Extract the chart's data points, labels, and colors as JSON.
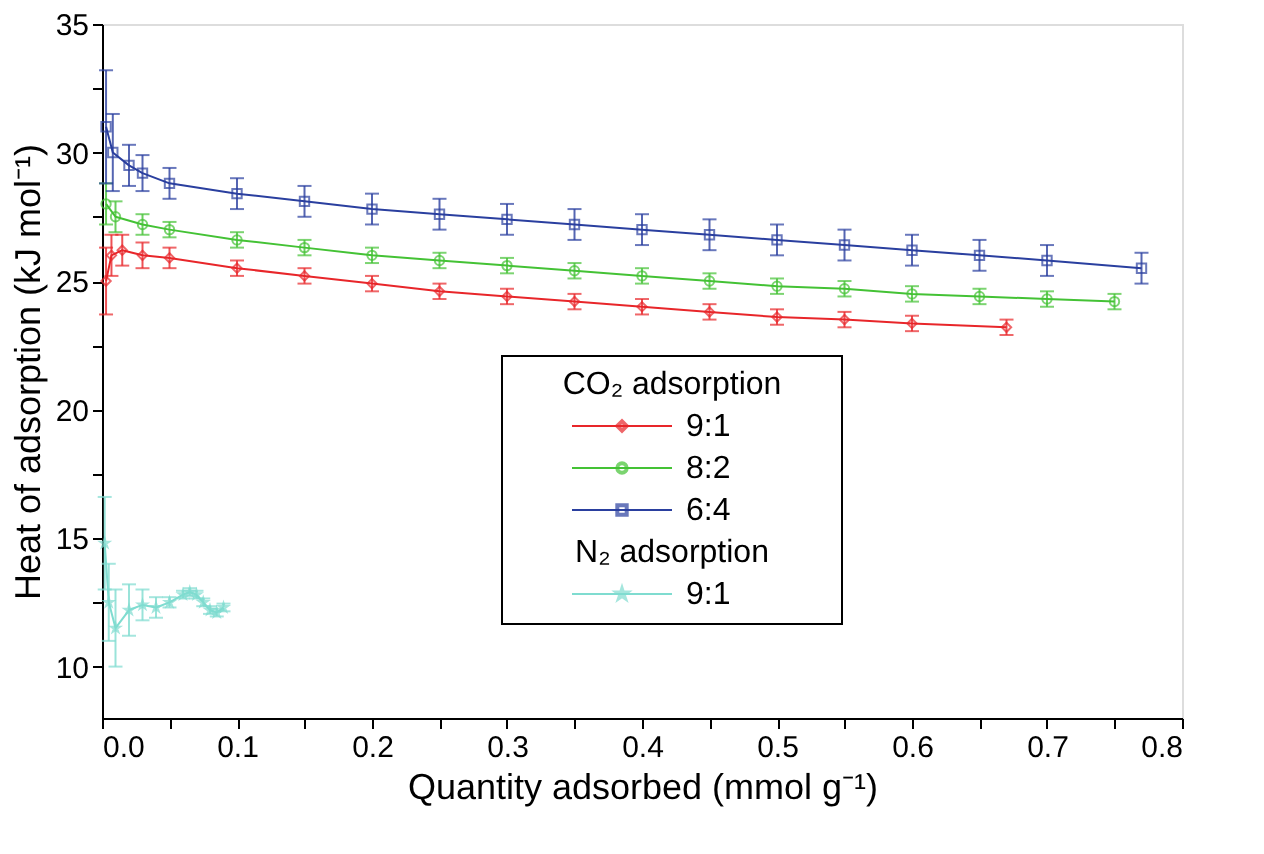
{
  "chart_data": {
    "type": "line",
    "xlabel": "Quantity adsorbed (mmol g⁻¹)",
    "ylabel": "Heat of adsorption (kJ mol⁻¹)",
    "xlim": [
      0,
      0.8
    ],
    "ylim": [
      8,
      35
    ],
    "xticks": [
      {
        "value": 0,
        "label": "0.0"
      },
      {
        "value": 0.05,
        "label": null
      },
      {
        "value": 0.1,
        "label": "0.1"
      },
      {
        "value": 0.15,
        "label": null
      },
      {
        "value": 0.2,
        "label": "0.2"
      },
      {
        "value": 0.25,
        "label": null
      },
      {
        "value": 0.3,
        "label": "0.3"
      },
      {
        "value": 0.35,
        "label": null
      },
      {
        "value": 0.4,
        "label": "0.4"
      },
      {
        "value": 0.45,
        "label": null
      },
      {
        "value": 0.5,
        "label": "0.5"
      },
      {
        "value": 0.55,
        "label": null
      },
      {
        "value": 0.6,
        "label": "0.6"
      },
      {
        "value": 0.65,
        "label": null
      },
      {
        "value": 0.7,
        "label": "0.7"
      },
      {
        "value": 0.75,
        "label": null
      },
      {
        "value": 0.8,
        "label": "0.8"
      }
    ],
    "yticks": [
      10,
      {
        "value": 12.5,
        "label": null
      },
      15,
      {
        "value": 17.5,
        "label": null
      },
      20,
      {
        "value": 22.5,
        "label": null
      },
      25,
      {
        "value": 27.5,
        "label": null
      },
      30,
      {
        "value": 32.5,
        "label": null
      },
      35
    ],
    "legend": "bottom",
    "legend_title": "CO₂ adsorption",
    "grid": false,
    "annotations": [
      "N₂ adsorption"
    ],
    "series": [
      {
        "name": "9:1",
        "color": "#e8262a",
        "marker": "diamond",
        "x": [
          0.003,
          0.007,
          0.015,
          0.03,
          0.05,
          0.1,
          0.15,
          0.2,
          0.25,
          0.3,
          0.35,
          0.4,
          0.45,
          0.5,
          0.55,
          0.6,
          0.67
        ],
        "values": [
          25.0,
          26.0,
          26.2,
          26.0,
          25.9,
          25.5,
          25.2,
          24.9,
          24.6,
          24.4,
          24.2,
          24.0,
          23.8,
          23.6,
          23.5,
          23.35,
          23.2
        ],
        "errors": [
          1.3,
          0.8,
          0.6,
          0.5,
          0.4,
          0.3,
          0.3,
          0.3,
          0.3,
          0.3,
          0.3,
          0.3,
          0.3,
          0.3,
          0.3,
          0.3,
          0.3
        ]
      },
      {
        "name": "8:2",
        "color": "#44c235",
        "marker": "circle",
        "x": [
          0.003,
          0.01,
          0.03,
          0.05,
          0.1,
          0.15,
          0.2,
          0.25,
          0.3,
          0.35,
          0.4,
          0.45,
          0.5,
          0.55,
          0.6,
          0.65,
          0.7,
          0.75
        ],
        "values": [
          28.0,
          27.5,
          27.2,
          27.0,
          26.6,
          26.3,
          26.0,
          25.8,
          25.6,
          25.4,
          25.2,
          25.0,
          24.8,
          24.7,
          24.5,
          24.4,
          24.3,
          24.2
        ],
        "errors": [
          0.8,
          0.6,
          0.4,
          0.3,
          0.3,
          0.3,
          0.3,
          0.3,
          0.3,
          0.3,
          0.3,
          0.3,
          0.3,
          0.3,
          0.3,
          0.3,
          0.3,
          0.3
        ]
      },
      {
        "name": "6:4",
        "color": "#2a3f9f",
        "marker": "square",
        "x": [
          0.003,
          0.008,
          0.02,
          0.03,
          0.05,
          0.1,
          0.15,
          0.2,
          0.25,
          0.3,
          0.35,
          0.4,
          0.45,
          0.5,
          0.55,
          0.6,
          0.65,
          0.7,
          0.77
        ],
        "values": [
          31.0,
          30.0,
          29.5,
          29.2,
          28.8,
          28.4,
          28.1,
          27.8,
          27.6,
          27.4,
          27.2,
          27.0,
          26.8,
          26.6,
          26.4,
          26.2,
          26.0,
          25.8,
          25.5
        ],
        "errors": [
          2.2,
          1.5,
          0.8,
          0.7,
          0.6,
          0.6,
          0.6,
          0.6,
          0.6,
          0.6,
          0.6,
          0.6,
          0.6,
          0.6,
          0.6,
          0.6,
          0.6,
          0.6,
          0.6
        ]
      },
      {
        "name": "9:1",
        "color": "#7fdcd0",
        "marker": "star",
        "x": [
          0.002,
          0.005,
          0.01,
          0.02,
          0.03,
          0.04,
          0.05,
          0.06,
          0.065,
          0.07,
          0.075,
          0.08,
          0.085,
          0.09
        ],
        "values": [
          14.8,
          12.5,
          11.5,
          12.2,
          12.4,
          12.3,
          12.5,
          12.8,
          12.9,
          12.8,
          12.5,
          12.2,
          12.1,
          12.3
        ],
        "errors": [
          1.8,
          1.5,
          1.5,
          1.0,
          0.6,
          0.4,
          0.2,
          0.15,
          0.15,
          0.15,
          0.15,
          0.15,
          0.15,
          0.15
        ]
      }
    ]
  }
}
